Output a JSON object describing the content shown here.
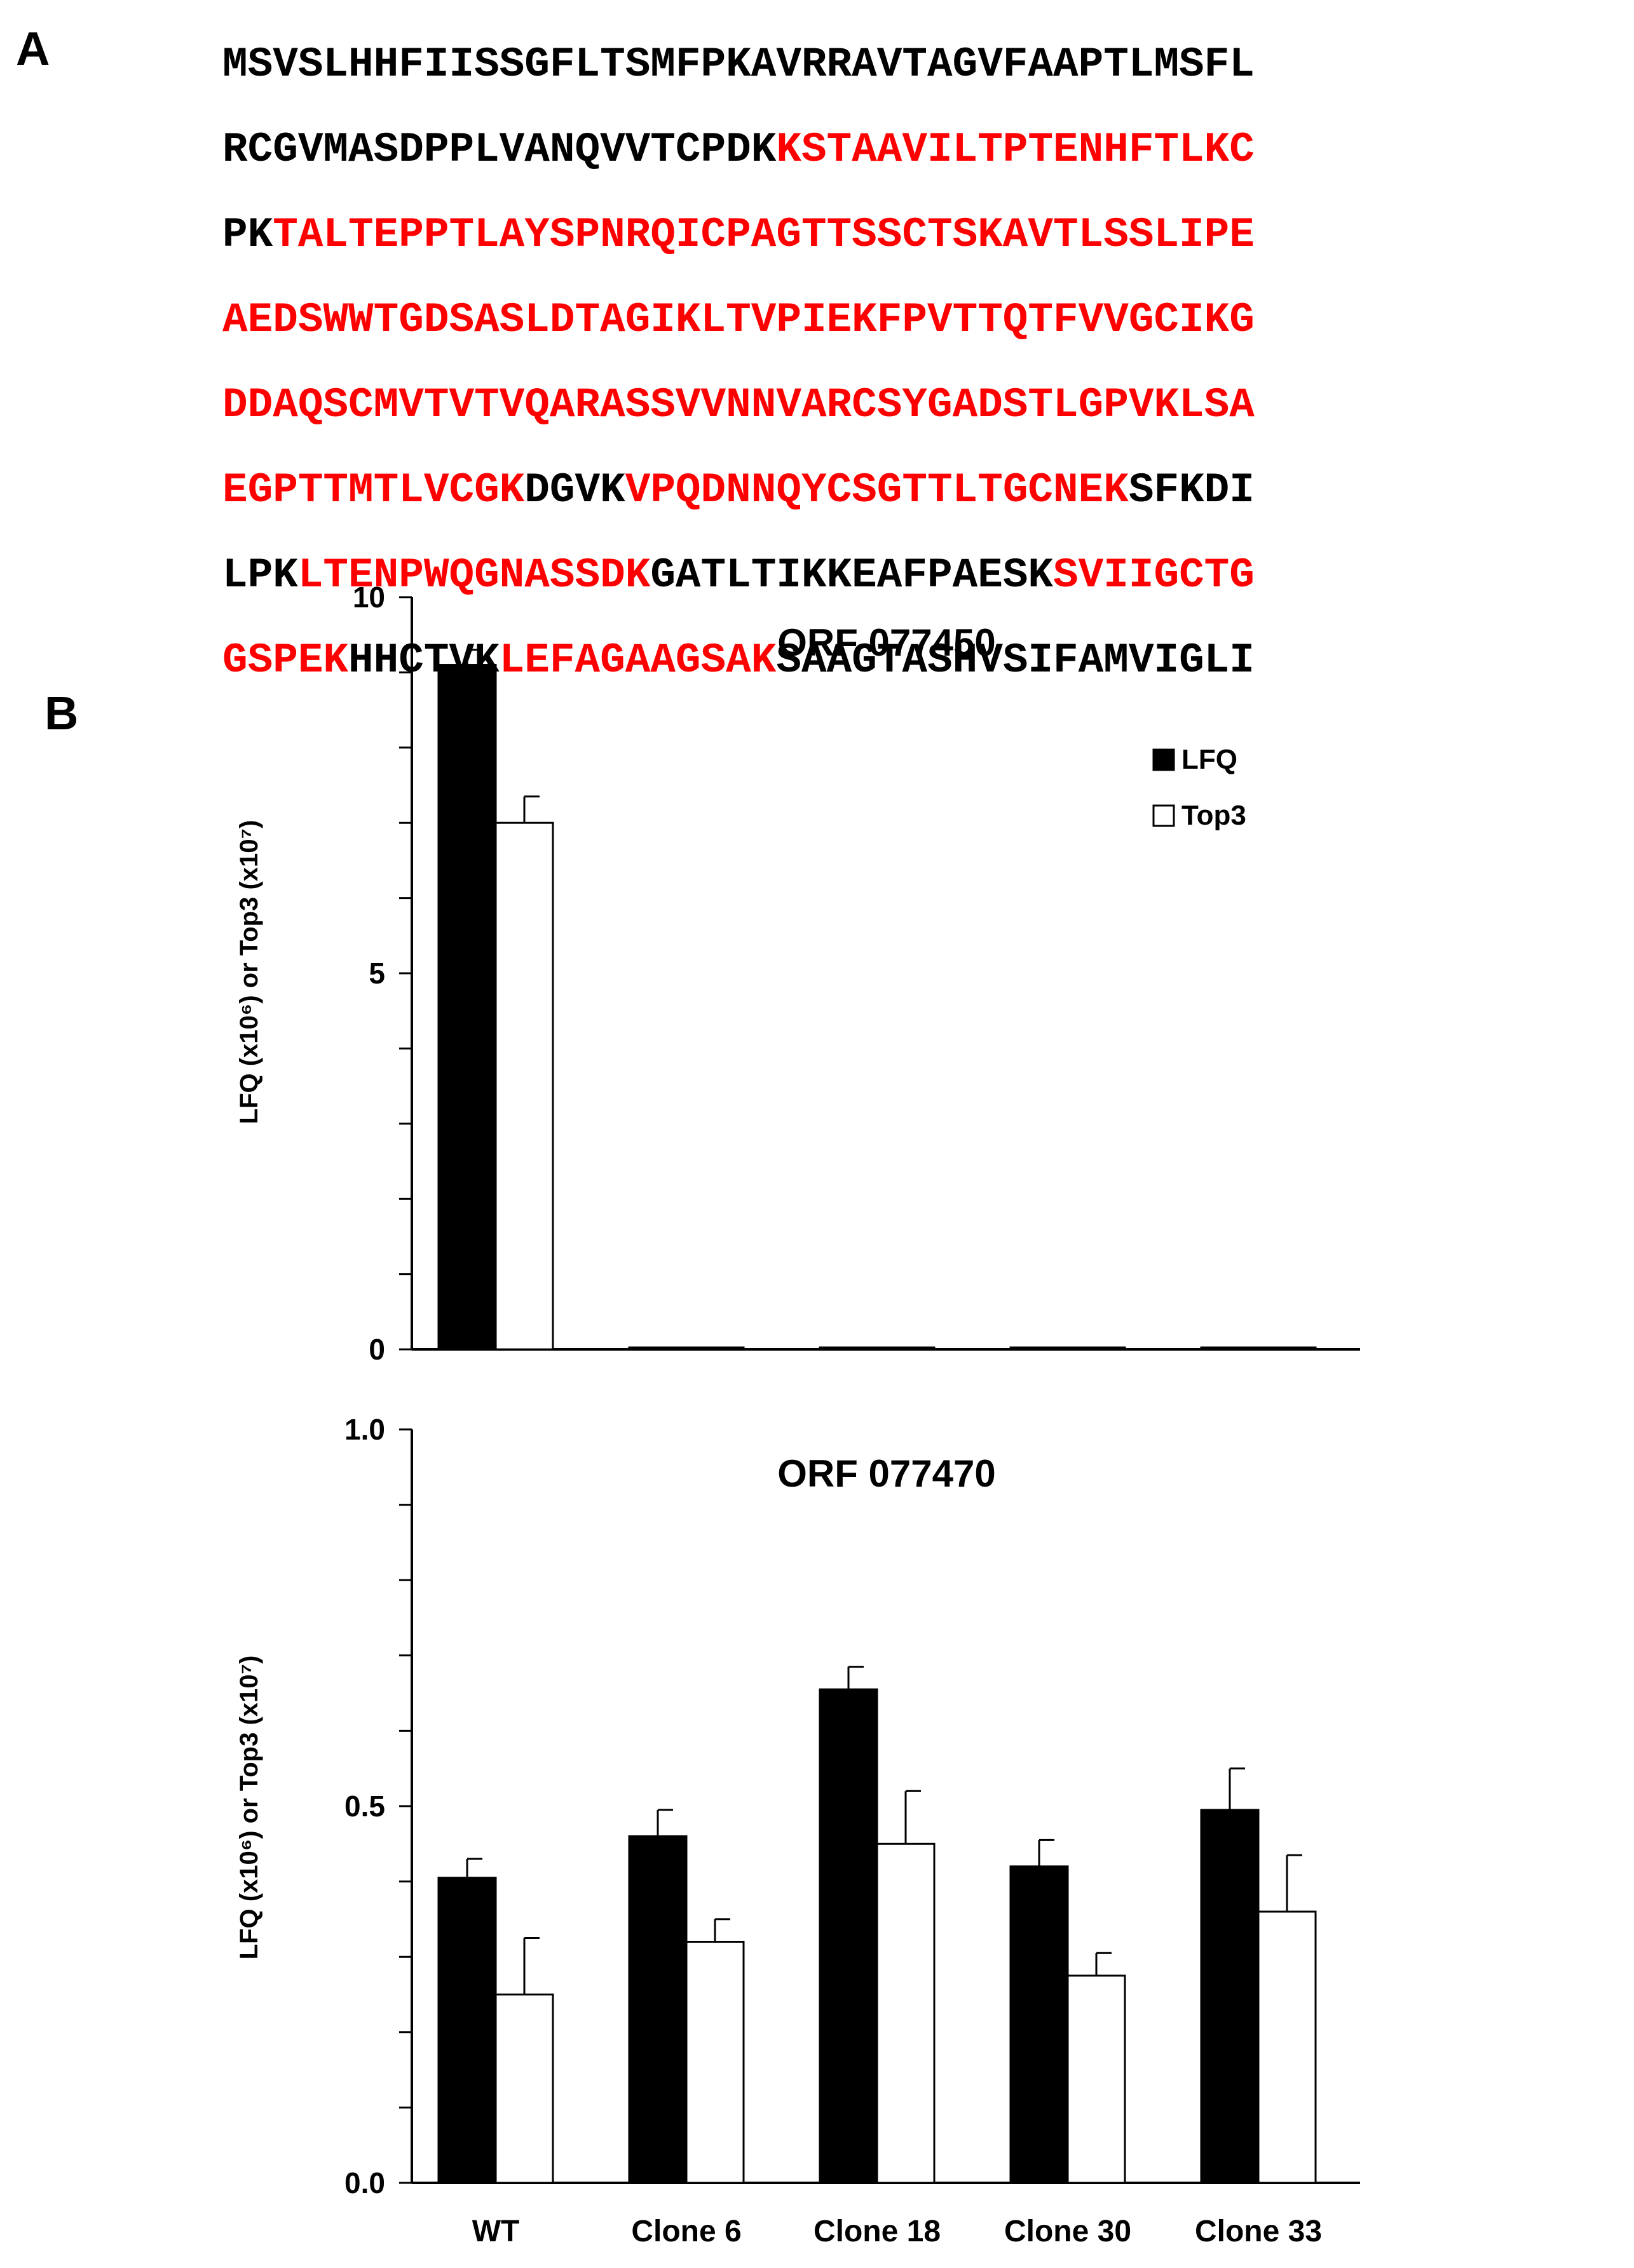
{
  "panel_labels": {
    "a": "A",
    "b": "B"
  },
  "colors": {
    "highlight": "#ff0000",
    "text": "#000000",
    "lfq_fill": "#000000",
    "top3_fill": "#ffffff"
  },
  "sequence": {
    "lines": [
      [
        {
          "text": "MSVSLHHFIISSGFLTSMFPKAVRRAVTAGVFAAPTLMSFL",
          "highlight": false
        }
      ],
      [
        {
          "text": "RCGVMASDPPLVANQVVTCPDK",
          "highlight": false
        },
        {
          "text": "KSTAAVILTPTENHFTLKC",
          "highlight": true
        }
      ],
      [
        {
          "text": "PK",
          "highlight": false
        },
        {
          "text": "TALTEPPTLAYSPNRQICPAGTTSSCTSKAVTLSSLIPE",
          "highlight": true
        }
      ],
      [
        {
          "text": "AEDSWWTGDSASLDTAGIKLTVPIEKFPVTTQTFVVGCIKG",
          "highlight": true
        }
      ],
      [
        {
          "text": "DDAQSCMVTVTVQARASSVVNNVARCSYGADSTLGPVKLSA",
          "highlight": true
        }
      ],
      [
        {
          "text": "EGPTTMTLVCGK",
          "highlight": true
        },
        {
          "text": "DGVK",
          "highlight": false
        },
        {
          "text": "VPQDNNQYCSGTTLTGCNEK",
          "highlight": true
        },
        {
          "text": "SFKDI",
          "highlight": false
        }
      ],
      [
        {
          "text": "LPK",
          "highlight": false
        },
        {
          "text": "LTENPWQGNASSDK",
          "highlight": true
        },
        {
          "text": "GATLTIKKEAFPAESK",
          "highlight": false
        },
        {
          "text": "SVIIGCTG",
          "highlight": true
        }
      ],
      [
        {
          "text": "GSPEK",
          "highlight": true
        },
        {
          "text": "HHCTVK",
          "highlight": false
        },
        {
          "text": "LEFAGAAGSAK",
          "highlight": true
        },
        {
          "text": "SAAGTASHVSIFAMVIGLI",
          "highlight": false
        }
      ]
    ]
  },
  "chart_data": [
    {
      "type": "bar",
      "title": "ORF 077450",
      "ylabel": "LFQ (x10⁶) or Top3 (x10⁷)",
      "categories": [
        "WT",
        "Clone 6",
        "Clone 18",
        "Clone 30",
        "Clone 33"
      ],
      "show_category_labels": false,
      "ylim": [
        0,
        10
      ],
      "y_ticks": [
        0,
        5,
        10
      ],
      "y_tick_labels": [
        "0",
        "5",
        "10"
      ],
      "minor_tick_step": 1,
      "series": [
        {
          "name": "LFQ",
          "color": "#000000",
          "values": [
            9.1,
            0.02,
            0.02,
            0.02,
            0.02
          ],
          "errors": [
            0.2,
            0,
            0,
            0,
            0
          ]
        },
        {
          "name": "Top3",
          "color": "#ffffff",
          "values": [
            7.0,
            0,
            0,
            0,
            0
          ],
          "errors": [
            0.35,
            0,
            0,
            0,
            0
          ]
        }
      ],
      "legend": {
        "placement": "top-right",
        "entries": [
          "LFQ",
          "Top3"
        ]
      }
    },
    {
      "type": "bar",
      "title": "ORF 077470",
      "ylabel": "LFQ (x10⁶) or Top3 (x10⁷)",
      "categories": [
        "WT",
        "Clone 6",
        "Clone 18",
        "Clone 30",
        "Clone 33"
      ],
      "show_category_labels": true,
      "ylim": [
        0,
        1.0
      ],
      "y_ticks": [
        0,
        0.5,
        1.0
      ],
      "y_tick_labels": [
        "0.0",
        "0.5",
        "1.0"
      ],
      "minor_tick_step": 0.1,
      "series": [
        {
          "name": "LFQ",
          "color": "#000000",
          "values": [
            0.405,
            0.46,
            0.655,
            0.42,
            0.495
          ],
          "errors": [
            0.025,
            0.035,
            0.03,
            0.035,
            0.055
          ]
        },
        {
          "name": "Top3",
          "color": "#ffffff",
          "values": [
            0.25,
            0.32,
            0.45,
            0.275,
            0.36
          ],
          "errors": [
            0.075,
            0.03,
            0.07,
            0.03,
            0.075
          ]
        }
      ]
    }
  ]
}
